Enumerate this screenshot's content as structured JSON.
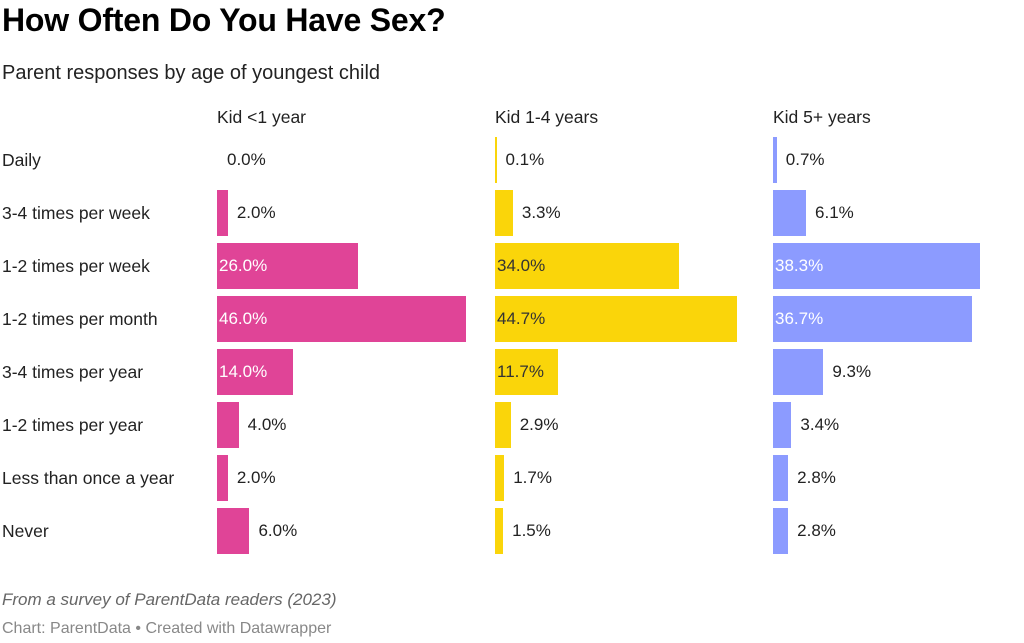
{
  "title": "How Often Do You Have Sex?",
  "subtitle": "Parent responses by age of youngest child",
  "notes": "From a survey of ParentData readers (2023)",
  "byline": "Chart: ParentData • Created with Datawrapper",
  "chart_data": {
    "type": "bar",
    "orientation": "horizontal",
    "title": "How Often Do You Have Sex?",
    "subtitle": "Parent responses by age of youngest child",
    "categories": [
      "Daily",
      "3-4 times per week",
      "1-2 times per week",
      "1-2 times per month",
      "3-4 times per year",
      "1-2 times per year",
      "Less than once a year",
      "Never"
    ],
    "unit": "%",
    "xlim": [
      0,
      46
    ],
    "grid": false,
    "series": [
      {
        "name": "Kid <1 year",
        "color": "#e04497",
        "label_inside_color": "#ffffff",
        "values": [
          0.0,
          2.0,
          26.0,
          46.0,
          14.0,
          4.0,
          2.0,
          6.0
        ],
        "labels": [
          "0.0%",
          "2.0%",
          "26.0%",
          "46.0%",
          "14.0%",
          "4.0%",
          "2.0%",
          "6.0%"
        ]
      },
      {
        "name": "Kid 1-4 years",
        "color": "#fad50a",
        "label_inside_color": "#333333",
        "values": [
          0.1,
          3.3,
          34.0,
          44.7,
          11.7,
          2.9,
          1.7,
          1.5
        ],
        "labels": [
          "0.1%",
          "3.3%",
          "34.0%",
          "44.7%",
          "11.7%",
          "2.9%",
          "1.7%",
          "1.5%"
        ]
      },
      {
        "name": "Kid 5+ years",
        "color": "#8c9bff",
        "label_inside_color": "#ffffff",
        "values": [
          0.7,
          6.1,
          38.3,
          36.7,
          9.3,
          3.4,
          2.8,
          2.8
        ],
        "labels": [
          "0.7%",
          "6.1%",
          "38.3%",
          "36.7%",
          "9.3%",
          "3.4%",
          "2.8%",
          "2.8%"
        ]
      }
    ]
  }
}
